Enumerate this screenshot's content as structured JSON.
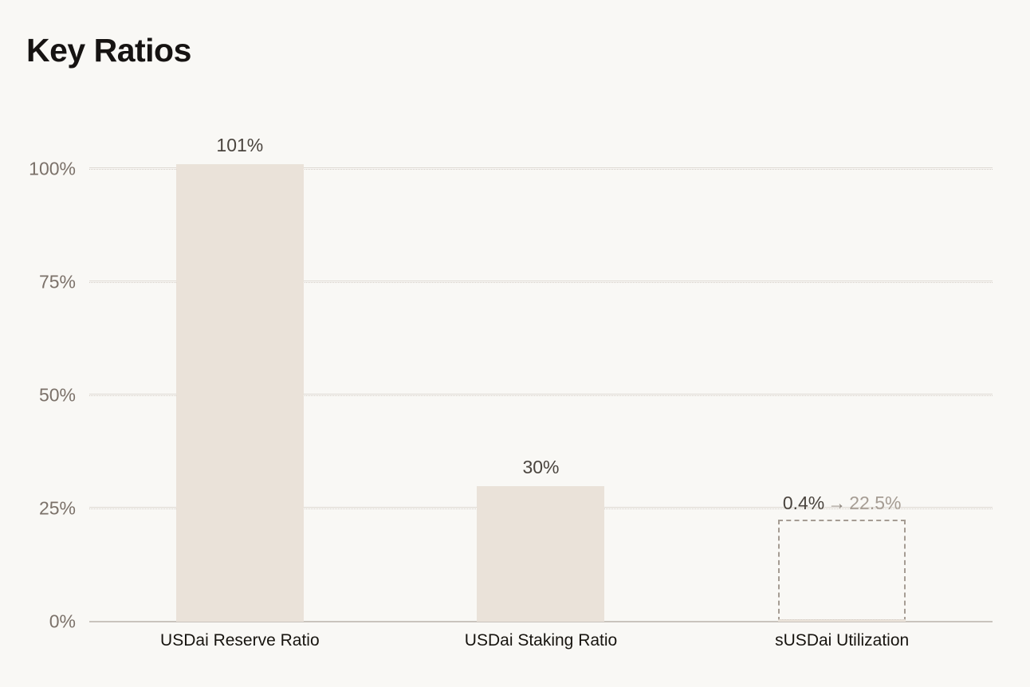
{
  "page": {
    "title": "Key Ratios"
  },
  "colors": {
    "bg": "#f9f8f5",
    "title_color": "#161312",
    "bar_fill": "#eae2d9",
    "tick_color": "#7b7169",
    "grid_solid": "#dfdad4",
    "grid_dotted": "#d3ccc5",
    "axis_line": "#c9c3bd",
    "value_label": "#4a443e",
    "arrow_color": "#8d857d",
    "target_color": "#a59c93",
    "dashed_border": "#a59c93",
    "cat_label": "#17140f"
  },
  "chart_data": {
    "type": "bar",
    "title": "Key Ratios",
    "xlabel": "",
    "ylabel": "",
    "categories": [
      "USDai Reserve Ratio",
      "USDai Staking Ratio",
      "sUSDai Utilization"
    ],
    "values": [
      101,
      30,
      0.4
    ],
    "ylim": [
      0,
      105
    ],
    "grid": true,
    "legend": false,
    "y_ticks": [
      {
        "value": 0,
        "label": "0%"
      },
      {
        "value": 25,
        "label": "25%"
      },
      {
        "value": 50,
        "label": "50%"
      },
      {
        "value": 75,
        "label": "75%"
      },
      {
        "value": 100,
        "label": "100%"
      }
    ],
    "bars": [
      {
        "category": "USDai Reserve Ratio",
        "value": 101,
        "value_label": "101%",
        "style": "solid"
      },
      {
        "category": "USDai Staking Ratio",
        "value": 30,
        "value_label": "30%",
        "style": "solid"
      },
      {
        "category": "sUSDai Utilization",
        "value": 0.4,
        "value_label": "0.4%",
        "arrow": "→",
        "target_value": 22.5,
        "target_label": "22.5%",
        "style": "current-with-dashed-target"
      }
    ]
  }
}
